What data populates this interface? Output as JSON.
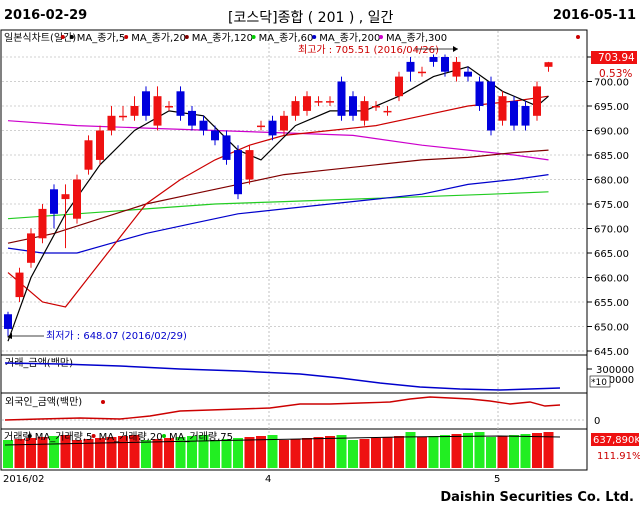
{
  "header": {
    "start_date": "2016-02-29",
    "title": "[코스닥]종합 ( 201 ) , 일간",
    "end_date": "2016-05-11"
  },
  "footer": {
    "company": "Daishin Securities Co. Ltd."
  },
  "price_panel": {
    "legend": [
      {
        "label": "일본식차트(일간)",
        "color": "#cc0000"
      },
      {
        "label": "MA_종가,5",
        "color": "#000000"
      },
      {
        "label": "MA_종가,20",
        "color": "#cc0000"
      },
      {
        "label": "MA_종가,120",
        "color": "#800000"
      },
      {
        "label": "MA_종가,60",
        "color": "#00cc00"
      },
      {
        "label": "MA_종가,200",
        "color": "#0000cc"
      },
      {
        "label": "MA_종가,300",
        "color": "#cc00cc"
      }
    ],
    "max_note": "최고가 : 705.51 (2016/04/26)",
    "min_note": "최저가 : 648.07 (2016/02/29)",
    "current_price": "703.94",
    "current_change": "0.53%",
    "y_ticks": [
      "705.00",
      "700.00",
      "695.00",
      "690.00",
      "685.00",
      "680.00",
      "675.00",
      "670.00",
      "665.00",
      "660.00",
      "655.00",
      "650.00",
      "645.00"
    ]
  },
  "amount_panel": {
    "title": "거래_금액(백만)",
    "ticks": [
      "300000",
      "250000"
    ],
    "multiplier": "*10"
  },
  "foreign_panel": {
    "title": "외국인_금액(백만)",
    "tick": "0"
  },
  "volume_panel": {
    "legend": [
      {
        "label": "거래량",
        "color": "#cc0000"
      },
      {
        "label": "MA_거래량,5",
        "color": "#000000"
      },
      {
        "label": "MA_거래량,20",
        "color": "#cc0000"
      },
      {
        "label": "MA_거래량,75",
        "color": "#00cc00"
      }
    ],
    "current_volume": "637,890K",
    "current_ratio": "111.91%"
  },
  "date_axis": [
    "2016/02",
    "4",
    "5"
  ],
  "chart_data": {
    "type": "candlestick",
    "ylim": [
      645,
      706
    ],
    "candles": [
      {
        "o": 652.5,
        "c": 649.5,
        "h": 653,
        "l": 648.07
      },
      {
        "o": 656,
        "c": 661,
        "h": 662,
        "l": 655
      },
      {
        "o": 663,
        "c": 669,
        "h": 670,
        "l": 662
      },
      {
        "o": 668,
        "c": 674,
        "h": 675,
        "l": 667
      },
      {
        "o": 678,
        "c": 673,
        "h": 679,
        "l": 670
      },
      {
        "o": 676,
        "c": 677,
        "h": 679,
        "l": 666
      },
      {
        "o": 672,
        "c": 680,
        "h": 681,
        "l": 671
      },
      {
        "o": 682,
        "c": 688,
        "h": 689,
        "l": 681
      },
      {
        "o": 684,
        "c": 690,
        "h": 691,
        "l": 683
      },
      {
        "o": 690,
        "c": 693,
        "h": 695,
        "l": 689
      },
      {
        "o": 693,
        "c": 693,
        "h": 695,
        "l": 692
      },
      {
        "o": 693,
        "c": 695,
        "h": 697,
        "l": 692
      },
      {
        "o": 698,
        "c": 693,
        "h": 699,
        "l": 692
      },
      {
        "o": 691,
        "c": 697,
        "h": 699,
        "l": 690
      },
      {
        "o": 695,
        "c": 695,
        "h": 696,
        "l": 694
      },
      {
        "o": 698,
        "c": 693,
        "h": 699,
        "l": 692
      },
      {
        "o": 694,
        "c": 691,
        "h": 695,
        "l": 690
      },
      {
        "o": 692,
        "c": 690,
        "h": 693,
        "l": 689
      },
      {
        "o": 690,
        "c": 688,
        "h": 691,
        "l": 687
      },
      {
        "o": 689,
        "c": 684,
        "h": 690,
        "l": 683
      },
      {
        "o": 686,
        "c": 677,
        "h": 687,
        "l": 676
      },
      {
        "o": 680,
        "c": 686,
        "h": 687,
        "l": 679
      },
      {
        "o": 691,
        "c": 691,
        "h": 692,
        "l": 690
      },
      {
        "o": 692,
        "c": 689,
        "h": 693,
        "l": 688
      },
      {
        "o": 690,
        "c": 693,
        "h": 694,
        "l": 689
      },
      {
        "o": 693,
        "c": 696,
        "h": 697,
        "l": 692
      },
      {
        "o": 694,
        "c": 697,
        "h": 698,
        "l": 693
      },
      {
        "o": 696,
        "c": 696,
        "h": 697,
        "l": 695
      },
      {
        "o": 696,
        "c": 696,
        "h": 697,
        "l": 695
      },
      {
        "o": 700,
        "c": 693,
        "h": 701,
        "l": 692
      },
      {
        "o": 697,
        "c": 693,
        "h": 698,
        "l": 692
      },
      {
        "o": 692,
        "c": 696,
        "h": 697,
        "l": 691
      },
      {
        "o": 695,
        "c": 695,
        "h": 696,
        "l": 694
      },
      {
        "o": 694,
        "c": 694,
        "h": 695,
        "l": 693
      },
      {
        "o": 697,
        "c": 701,
        "h": 702,
        "l": 696
      },
      {
        "o": 704,
        "c": 702,
        "h": 705,
        "l": 700
      },
      {
        "o": 702,
        "c": 702,
        "h": 703,
        "l": 701
      },
      {
        "o": 705,
        "c": 704,
        "h": 705.51,
        "l": 703
      },
      {
        "o": 705,
        "c": 702,
        "h": 705.5,
        "l": 701
      },
      {
        "o": 701,
        "c": 704,
        "h": 705,
        "l": 700
      },
      {
        "o": 702,
        "c": 701,
        "h": 703,
        "l": 700
      },
      {
        "o": 700,
        "c": 695,
        "h": 701,
        "l": 694
      },
      {
        "o": 700,
        "c": 690,
        "h": 701,
        "l": 689
      },
      {
        "o": 692,
        "c": 697,
        "h": 698,
        "l": 691
      },
      {
        "o": 696,
        "c": 691,
        "h": 697,
        "l": 690
      },
      {
        "o": 695,
        "c": 691,
        "h": 696,
        "l": 690
      },
      {
        "o": 693,
        "c": 699,
        "h": 700,
        "l": 692
      },
      {
        "o": 703,
        "c": 703.94,
        "h": 704,
        "l": 702
      }
    ],
    "ma5": [
      [
        0,
        647
      ],
      [
        2,
        660
      ],
      [
        5,
        673
      ],
      [
        8,
        683
      ],
      [
        11,
        690
      ],
      [
        14,
        694
      ],
      [
        17,
        693
      ],
      [
        20,
        686
      ],
      [
        22,
        684
      ],
      [
        25,
        691
      ],
      [
        28,
        694
      ],
      [
        31,
        694
      ],
      [
        34,
        697
      ],
      [
        37,
        701
      ],
      [
        40,
        703
      ],
      [
        43,
        698
      ],
      [
        46,
        695
      ],
      [
        47,
        697
      ]
    ],
    "ma20": [
      [
        0,
        661
      ],
      [
        3,
        655
      ],
      [
        5,
        654
      ],
      [
        7,
        660
      ],
      [
        9,
        666
      ],
      [
        12,
        675
      ],
      [
        15,
        680
      ],
      [
        18,
        684
      ],
      [
        21,
        687
      ],
      [
        24,
        689
      ],
      [
        28,
        690
      ],
      [
        32,
        691
      ],
      [
        36,
        693
      ],
      [
        40,
        695
      ],
      [
        44,
        696
      ],
      [
        47,
        697
      ]
    ],
    "ma120": [
      [
        0,
        667
      ],
      [
        4,
        669
      ],
      [
        8,
        672
      ],
      [
        12,
        675
      ],
      [
        16,
        677
      ],
      [
        20,
        679
      ],
      [
        24,
        681
      ],
      [
        28,
        682
      ],
      [
        32,
        683
      ],
      [
        36,
        684
      ],
      [
        40,
        684.5
      ],
      [
        44,
        685.5
      ],
      [
        47,
        686
      ]
    ],
    "ma60": [
      [
        0,
        672
      ],
      [
        6,
        673
      ],
      [
        12,
        674
      ],
      [
        18,
        675
      ],
      [
        24,
        675.5
      ],
      [
        30,
        676
      ],
      [
        36,
        676.5
      ],
      [
        42,
        677
      ],
      [
        47,
        677.5
      ]
    ],
    "ma200": [
      [
        0,
        666
      ],
      [
        3,
        665
      ],
      [
        6,
        665
      ],
      [
        9,
        667
      ],
      [
        12,
        669
      ],
      [
        16,
        671
      ],
      [
        20,
        673
      ],
      [
        24,
        674
      ],
      [
        28,
        675
      ],
      [
        32,
        676
      ],
      [
        36,
        677
      ],
      [
        40,
        679
      ],
      [
        44,
        680
      ],
      [
        47,
        681
      ]
    ],
    "ma300": [
      [
        0,
        692
      ],
      [
        6,
        691
      ],
      [
        12,
        690.5
      ],
      [
        18,
        690
      ],
      [
        24,
        689.5
      ],
      [
        30,
        689
      ],
      [
        36,
        687
      ],
      [
        40,
        686
      ],
      [
        44,
        685
      ],
      [
        47,
        684
      ]
    ]
  }
}
